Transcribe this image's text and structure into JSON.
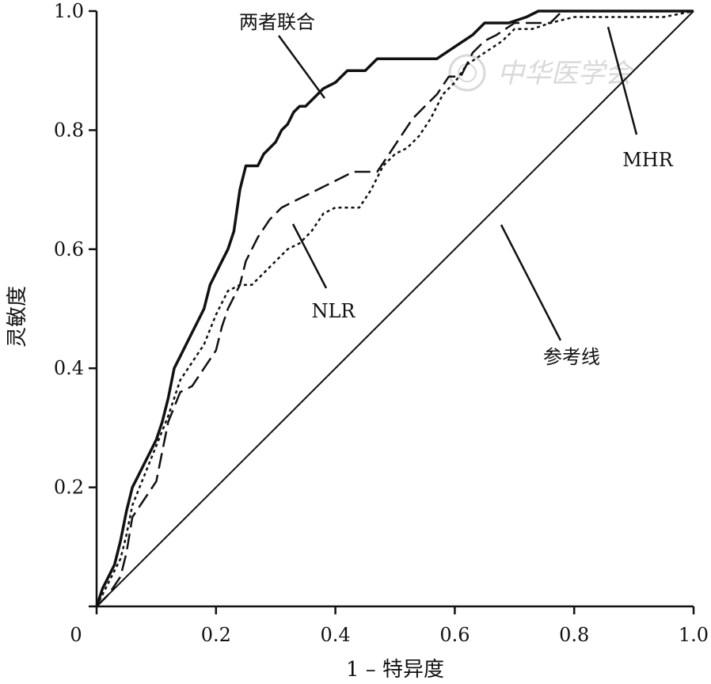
{
  "chart_data": {
    "type": "line",
    "title": "",
    "xlabel": "1 – 特异度",
    "ylabel": "灵敏度",
    "xlim": [
      0,
      1.0
    ],
    "ylim": [
      0,
      1.0
    ],
    "x_ticks": [
      "0",
      "0.2",
      "0.4",
      "0.6",
      "0.8",
      "1.0"
    ],
    "y_ticks": [
      "0.2",
      "0.4",
      "0.6",
      "0.8",
      "1.0"
    ],
    "grid": false,
    "legend": "none",
    "annotations": [
      "两者联合",
      "MHR",
      "NLR",
      "参考线"
    ],
    "watermark": "中华医学会",
    "series": [
      {
        "name": "两者联合",
        "style": "solid",
        "x": [
          0,
          0.01,
          0.02,
          0.03,
          0.04,
          0.05,
          0.06,
          0.07,
          0.08,
          0.09,
          0.1,
          0.11,
          0.12,
          0.13,
          0.14,
          0.15,
          0.16,
          0.17,
          0.18,
          0.19,
          0.2,
          0.21,
          0.22,
          0.23,
          0.24,
          0.25,
          0.26,
          0.27,
          0.28,
          0.29,
          0.3,
          0.31,
          0.32,
          0.33,
          0.34,
          0.35,
          0.36,
          0.38,
          0.4,
          0.42,
          0.45,
          0.47,
          0.5,
          0.53,
          0.57,
          0.6,
          0.63,
          0.65,
          0.67,
          0.69,
          0.72,
          0.74,
          0.78,
          0.85,
          1.0
        ],
        "y": [
          0,
          0.03,
          0.05,
          0.07,
          0.11,
          0.16,
          0.2,
          0.22,
          0.24,
          0.26,
          0.28,
          0.31,
          0.35,
          0.4,
          0.42,
          0.44,
          0.46,
          0.48,
          0.5,
          0.54,
          0.56,
          0.58,
          0.6,
          0.63,
          0.7,
          0.74,
          0.74,
          0.74,
          0.76,
          0.77,
          0.78,
          0.8,
          0.81,
          0.83,
          0.84,
          0.84,
          0.85,
          0.87,
          0.88,
          0.9,
          0.9,
          0.92,
          0.92,
          0.92,
          0.92,
          0.94,
          0.96,
          0.98,
          0.98,
          0.98,
          0.99,
          1.0,
          1.0,
          1.0,
          1.0
        ]
      },
      {
        "name": "NLR",
        "style": "dashed",
        "x": [
          0,
          0.02,
          0.04,
          0.05,
          0.06,
          0.08,
          0.1,
          0.11,
          0.12,
          0.14,
          0.16,
          0.18,
          0.2,
          0.21,
          0.22,
          0.24,
          0.25,
          0.27,
          0.29,
          0.31,
          0.33,
          0.35,
          0.37,
          0.39,
          0.41,
          0.43,
          0.45,
          0.47,
          0.49,
          0.51,
          0.53,
          0.55,
          0.57,
          0.59,
          0.61,
          0.63,
          0.65,
          0.67,
          0.7,
          0.73,
          0.76,
          0.78,
          0.85,
          1.0
        ],
        "y": [
          0,
          0.02,
          0.05,
          0.09,
          0.15,
          0.18,
          0.21,
          0.26,
          0.31,
          0.36,
          0.37,
          0.4,
          0.43,
          0.47,
          0.5,
          0.54,
          0.58,
          0.62,
          0.65,
          0.67,
          0.68,
          0.69,
          0.7,
          0.71,
          0.72,
          0.73,
          0.73,
          0.73,
          0.76,
          0.79,
          0.82,
          0.84,
          0.86,
          0.89,
          0.89,
          0.93,
          0.95,
          0.96,
          0.98,
          0.98,
          0.98,
          1.0,
          1.0,
          1.0
        ]
      },
      {
        "name": "MHR",
        "style": "dotted",
        "x": [
          0,
          0.02,
          0.04,
          0.05,
          0.06,
          0.08,
          0.1,
          0.12,
          0.14,
          0.16,
          0.18,
          0.2,
          0.22,
          0.24,
          0.26,
          0.28,
          0.3,
          0.32,
          0.34,
          0.36,
          0.38,
          0.4,
          0.42,
          0.44,
          0.46,
          0.48,
          0.5,
          0.52,
          0.54,
          0.56,
          0.58,
          0.6,
          0.62,
          0.65,
          0.68,
          0.7,
          0.73,
          0.76,
          0.8,
          0.85,
          0.9,
          0.95,
          1.0
        ],
        "y": [
          0,
          0.04,
          0.08,
          0.12,
          0.17,
          0.22,
          0.27,
          0.32,
          0.38,
          0.41,
          0.44,
          0.49,
          0.53,
          0.54,
          0.54,
          0.56,
          0.58,
          0.6,
          0.61,
          0.63,
          0.66,
          0.67,
          0.67,
          0.67,
          0.7,
          0.74,
          0.76,
          0.77,
          0.79,
          0.82,
          0.86,
          0.88,
          0.91,
          0.93,
          0.95,
          0.97,
          0.97,
          0.98,
          0.99,
          0.99,
          0.99,
          0.99,
          1.0
        ]
      },
      {
        "name": "参考线",
        "style": "thin-solid",
        "x": [
          0,
          1.0
        ],
        "y": [
          0,
          1.0
        ]
      }
    ]
  }
}
